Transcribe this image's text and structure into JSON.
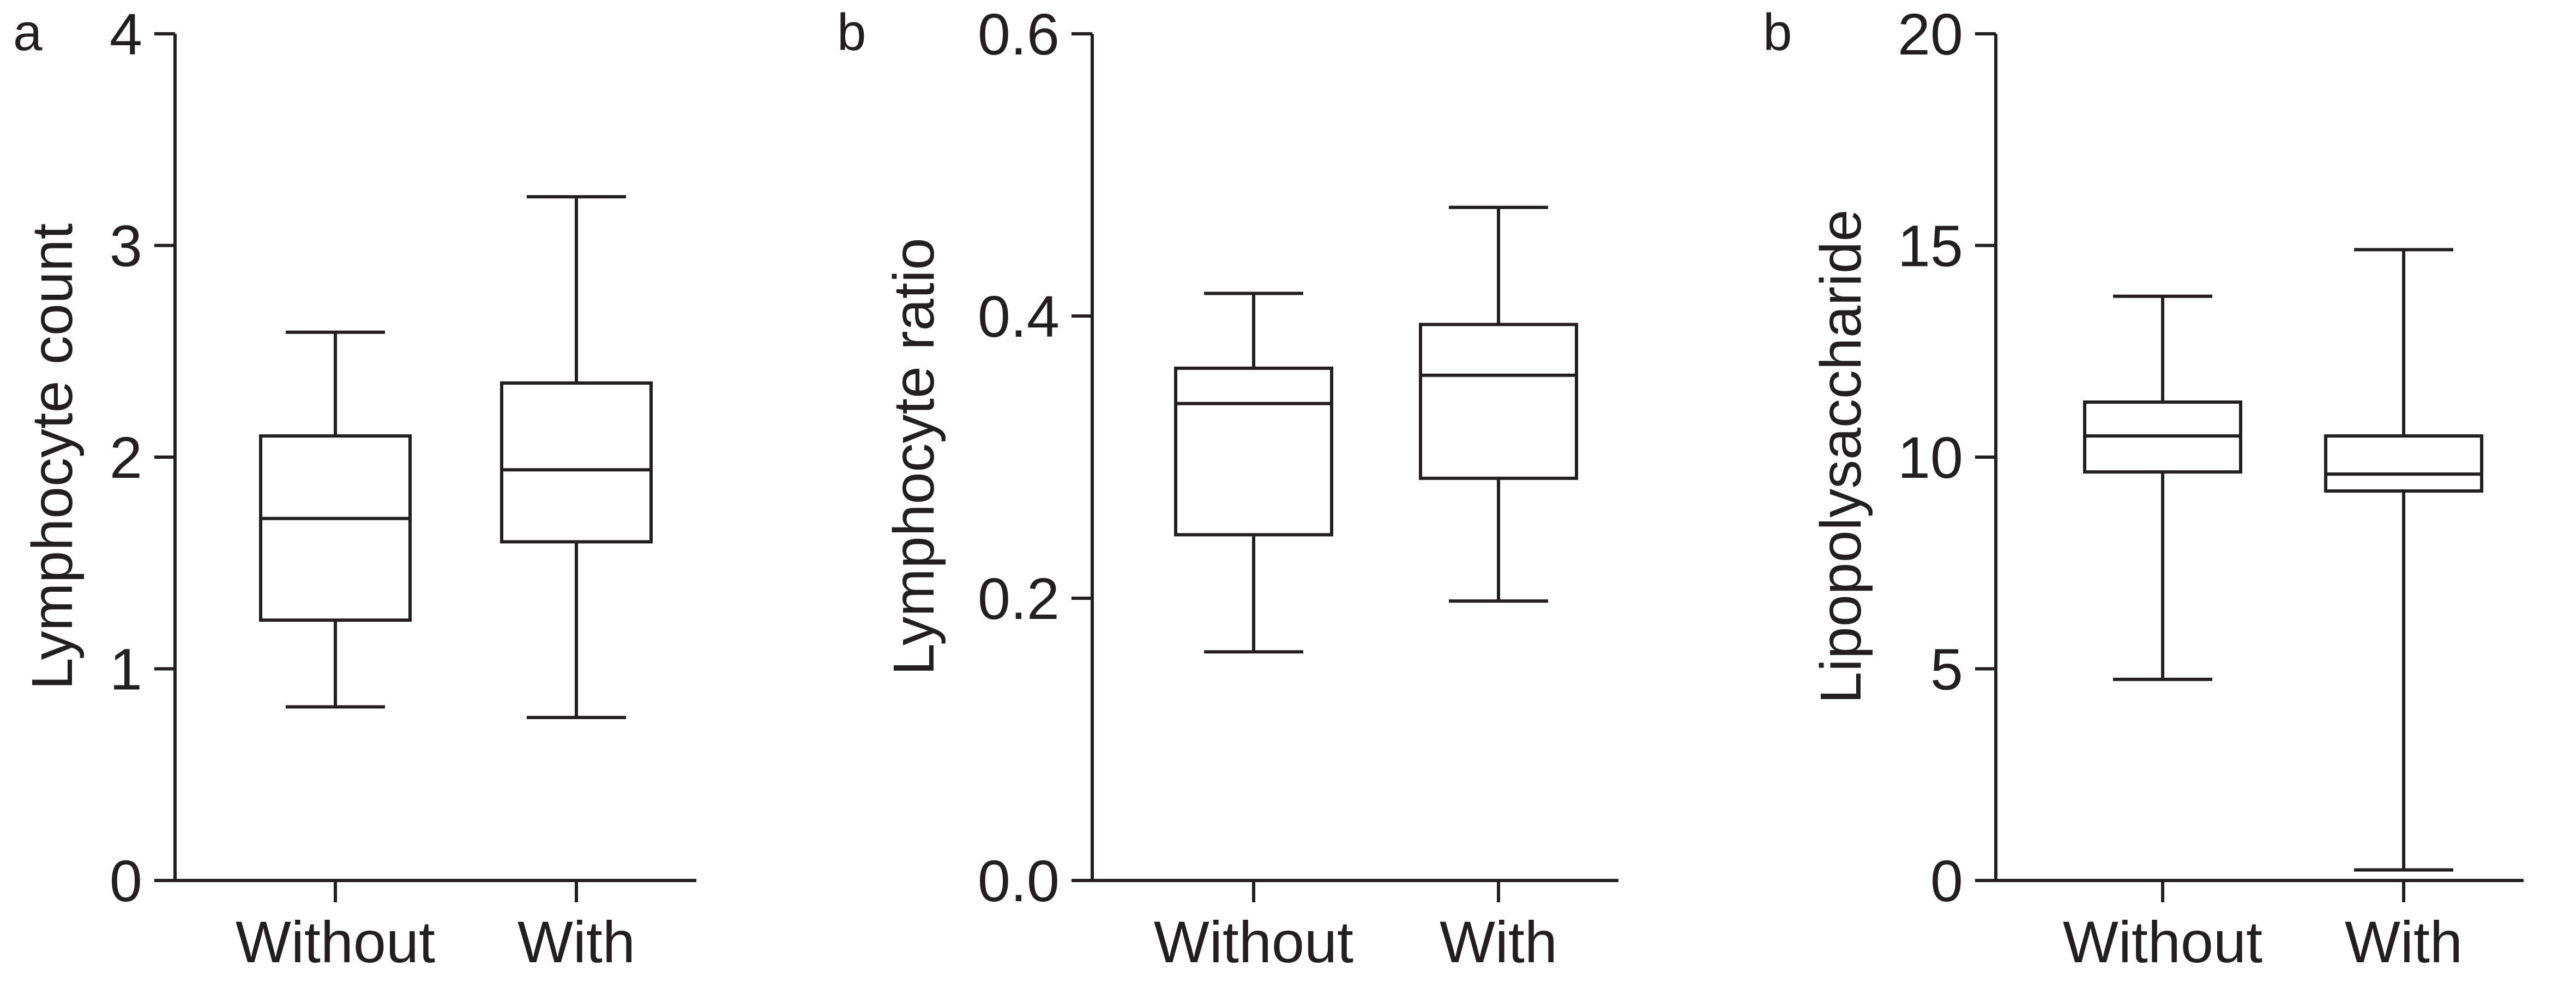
{
  "chart_data": [
    {
      "panel_label": "a",
      "type": "box",
      "ylabel": "Lymphocyte count",
      "ylim": [
        0,
        4
      ],
      "yticks": [
        "0",
        "1",
        "2",
        "3",
        "4"
      ],
      "categories": [
        "Without",
        "With"
      ],
      "boxes": [
        {
          "category": "Without",
          "min": 0.82,
          "q1": 1.23,
          "median": 1.71,
          "q3": 2.1,
          "max": 2.59
        },
        {
          "category": "With",
          "min": 0.77,
          "q1": 1.6,
          "median": 1.94,
          "q3": 2.35,
          "max": 3.23
        }
      ],
      "grid": false,
      "color": "#231f20"
    },
    {
      "panel_label": "b",
      "type": "box",
      "ylabel": "Lymphocyte ratio",
      "ylim": [
        0.0,
        0.6
      ],
      "yticks": [
        "0.0",
        "0.2",
        "0.4",
        "0.6"
      ],
      "categories": [
        "Without",
        "With"
      ],
      "boxes": [
        {
          "category": "Without",
          "min": 0.162,
          "q1": 0.245,
          "median": 0.338,
          "q3": 0.363,
          "max": 0.416
        },
        {
          "category": "With",
          "min": 0.198,
          "q1": 0.285,
          "median": 0.358,
          "q3": 0.394,
          "max": 0.477
        }
      ],
      "grid": false,
      "color": "#231f20"
    },
    {
      "panel_label": "b",
      "type": "box",
      "ylabel": "Lipopolysaccharide",
      "ylim": [
        0,
        20
      ],
      "yticks": [
        "0",
        "5",
        "10",
        "15",
        "20"
      ],
      "categories": [
        "Without",
        "With"
      ],
      "boxes": [
        {
          "category": "Without",
          "min": 4.75,
          "q1": 9.65,
          "median": 10.5,
          "q3": 11.3,
          "max": 13.8
        },
        {
          "category": "With",
          "min": 0.25,
          "q1": 9.2,
          "median": 9.6,
          "q3": 10.5,
          "max": 14.9
        }
      ],
      "grid": false,
      "color": "#231f20"
    }
  ]
}
